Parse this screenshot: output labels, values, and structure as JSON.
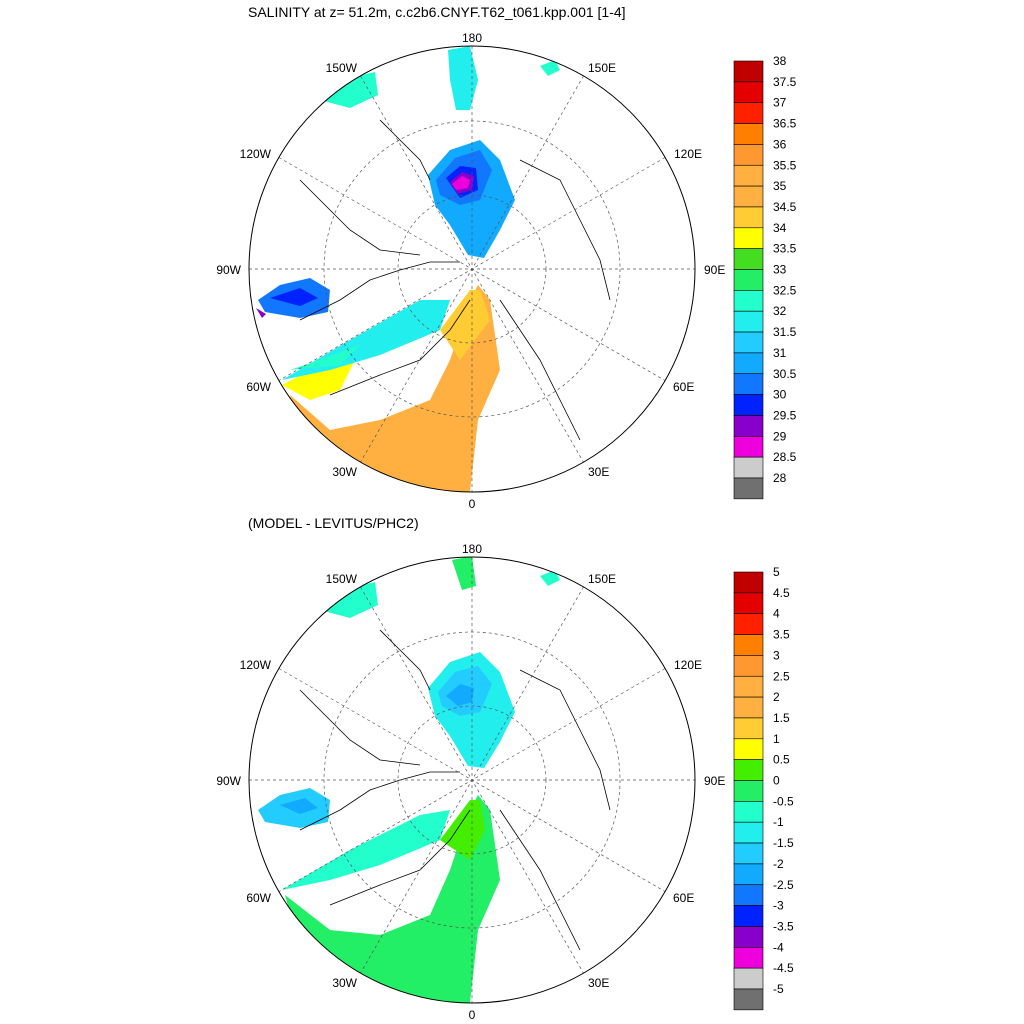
{
  "panels": [
    {
      "title": "SALINITY at z=  51.2m, c.c2b6.CNYF.T62_t061.kpp.001 [1-4]",
      "lon_labels": [
        "180",
        "150E",
        "120E",
        "90E",
        "60E",
        "30E",
        "0",
        "30W",
        "60W",
        "90W",
        "120W",
        "150W"
      ],
      "colorbar": {
        "labels": [
          "38",
          "37.5",
          "37",
          "36.5",
          "36",
          "35.5",
          "35",
          "34.5",
          "34",
          "33.5",
          "33",
          "32.5",
          "32",
          "31.5",
          "31",
          "30.5",
          "30",
          "29.5",
          "29",
          "28.5",
          "28"
        ],
        "colors": [
          "#c00000",
          "#e40000",
          "#ff2000",
          "#ff8000",
          "#ff9830",
          "#ffb040",
          "#ffb040",
          "#ffcc33",
          "#ffff00",
          "#44dd22",
          "#22ee66",
          "#22ffcc",
          "#22eeee",
          "#22ccff",
          "#11aaff",
          "#1177ff",
          "#0022ff",
          "#8800cc",
          "#ee00dd",
          "#cccccc",
          "#707070"
        ]
      }
    },
    {
      "title": "(MODEL - LEVITUS/PHC2)",
      "lon_labels": [
        "180",
        "150E",
        "120E",
        "90E",
        "60E",
        "30E",
        "0",
        "30W",
        "60W",
        "90W",
        "120W",
        "150W"
      ],
      "colorbar": {
        "labels": [
          "5",
          "4.5",
          "4",
          "3.5",
          "3",
          "2.5",
          "2",
          "1.5",
          "1",
          "0.5",
          "0",
          "-0.5",
          "-1",
          "-1.5",
          "-2",
          "-2.5",
          "-3",
          "-3.5",
          "-4",
          "-4.5",
          "-5"
        ],
        "colors": [
          "#c00000",
          "#e40000",
          "#ff2000",
          "#ff8000",
          "#ff9830",
          "#ffb040",
          "#ffb040",
          "#ffcc33",
          "#ffff00",
          "#44ee00",
          "#22ee66",
          "#22ffcc",
          "#22eeee",
          "#22ccff",
          "#11aaff",
          "#1177ff",
          "#0022ff",
          "#8800cc",
          "#ee00dd",
          "#cccccc",
          "#707070"
        ]
      }
    }
  ]
}
